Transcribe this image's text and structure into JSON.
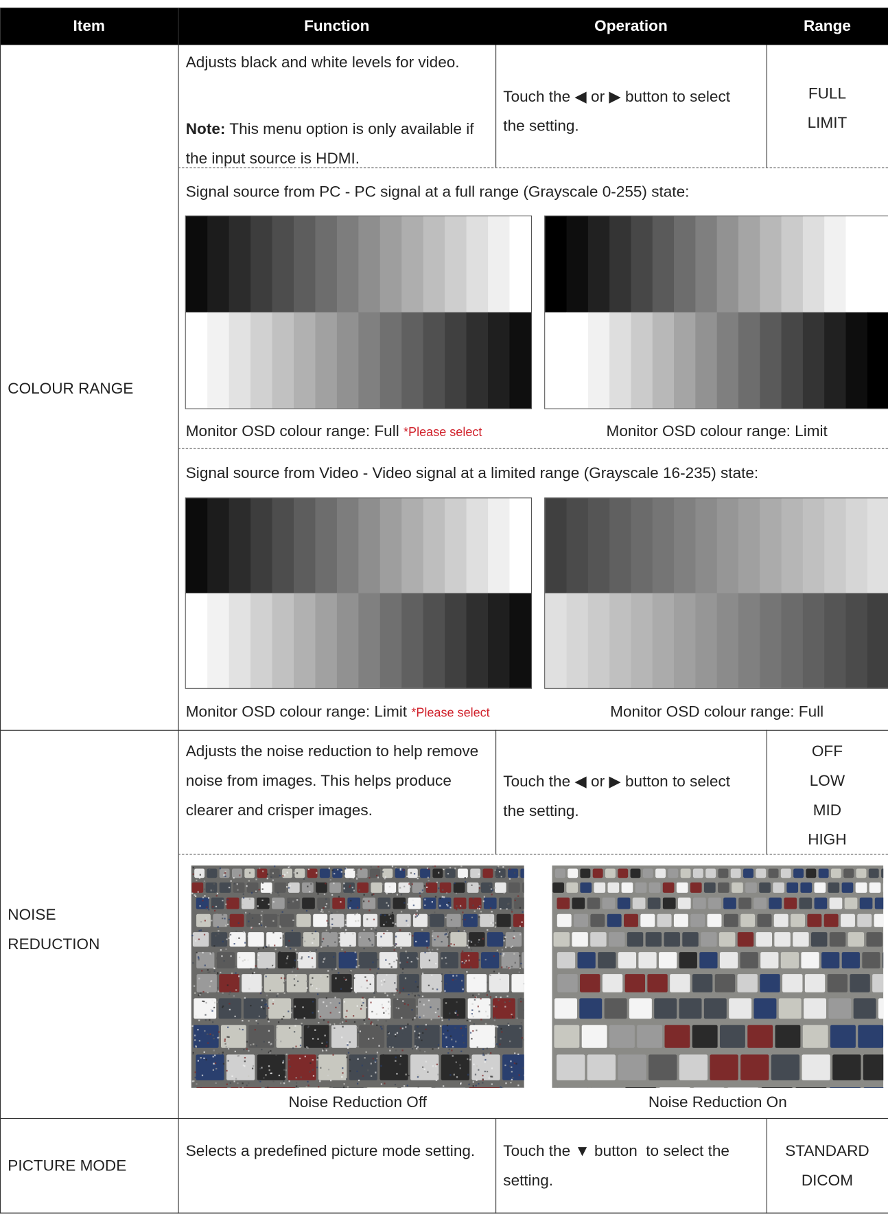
{
  "table": {
    "header": [
      "Item",
      "Function",
      "Operation",
      "Range"
    ],
    "rows": [
      {
        "item": "COLOUR RANGE",
        "function": "Adjusts black and white levels for video.",
        "note_label": "Note:",
        "note": "This menu option is only available if the input source is HDMI.",
        "operation": "Touch the ◀ or ▶ button to select the setting.",
        "range": [
          "FULL",
          "LIMIT"
        ],
        "examples": [
          {
            "caption": "Signal source from PC - PC signal at a full range (Grayscale 0-255) state:",
            "left": "Monitor OSD colour range: Full",
            "left_note": "*Please select",
            "right": "Monitor OSD colour range: Limit"
          },
          {
            "caption": "Signal source from Video - Video signal at a limited range (Grayscale 16-235) state:",
            "left": "Monitor OSD colour range: Limit",
            "left_note": "*Please select",
            "right": "Monitor OSD colour range: Full"
          }
        ]
      },
      {
        "item": "NOISE REDUCTION",
        "function": "Adjusts the noise reduction to help remove noise from images. This helps produce clearer and crisper images.",
        "operation": "Touch the ◀ or ▶ button to select the setting.",
        "range": [
          "OFF",
          "LOW",
          "MID",
          "HIGH"
        ],
        "images": [
          "Noise Reduction Off",
          "Noise Reduction On"
        ]
      },
      {
        "item": "PICTURE MODE",
        "function": "Selects a predefined picture mode setting.",
        "operation": "Touch the ▼ button  to select the setting.",
        "range": [
          "STANDARD",
          "DICOM"
        ]
      }
    ]
  }
}
